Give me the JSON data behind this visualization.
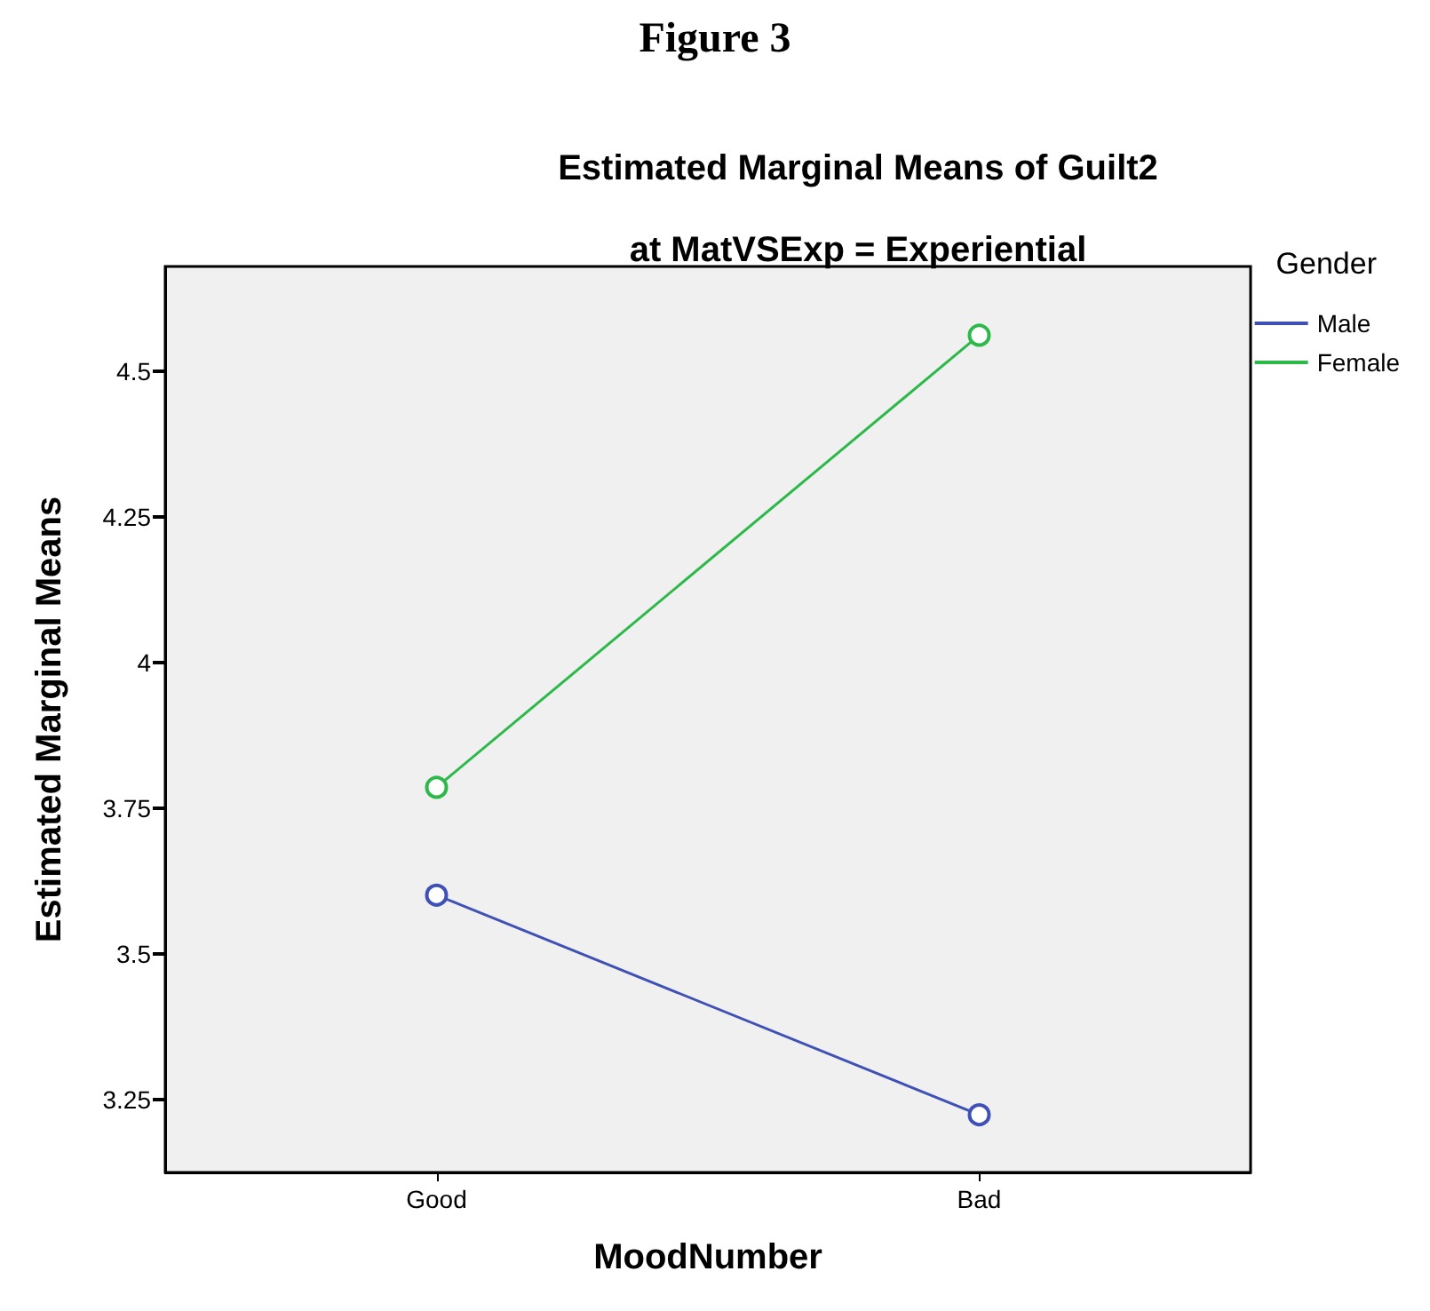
{
  "chart_data": {
    "type": "line",
    "title": "Estimated Marginal Means of Guilt2",
    "subtitle": "at MatVSExp = Experiential",
    "annotations": [
      "Figure 3"
    ],
    "xlabel": "MoodNumber",
    "ylabel": "Estimated Marginal Means",
    "legend_title": "Gender",
    "categories": [
      "Good",
      "Bad"
    ],
    "series": [
      {
        "name": "Male",
        "color": "#3f51b5",
        "values": [
          3.601,
          3.224
        ]
      },
      {
        "name": "Female",
        "color": "#2db84a",
        "values": [
          3.786,
          4.562
        ]
      }
    ],
    "ylim": [
      3.125,
      4.68
    ],
    "yticks": [
      3.25,
      3.5,
      3.75,
      4,
      4.25,
      4.5
    ],
    "grid": false,
    "legend": "top right",
    "marker": "circle",
    "line_style": "solid"
  }
}
